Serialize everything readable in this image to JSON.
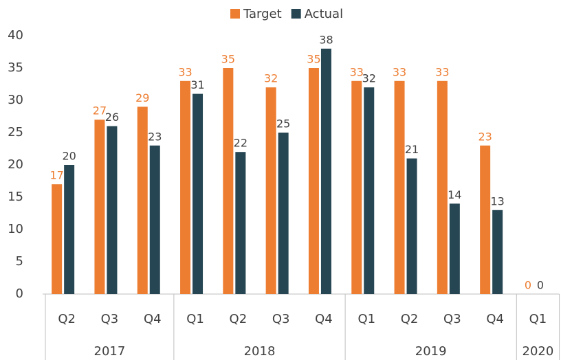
{
  "chart_data": {
    "type": "bar",
    "groups": [
      {
        "name": "2017",
        "quarters": [
          "Q2",
          "Q3",
          "Q4"
        ]
      },
      {
        "name": "2018",
        "quarters": [
          "Q1",
          "Q2",
          "Q3",
          "Q4"
        ]
      },
      {
        "name": "2019",
        "quarters": [
          "Q1",
          "Q2",
          "Q3",
          "Q4"
        ]
      },
      {
        "name": "2020",
        "quarters": [
          "Q1"
        ]
      }
    ],
    "series": [
      {
        "name": "Target",
        "color": "#ed7d31",
        "values": [
          17,
          27,
          29,
          33,
          35,
          32,
          35,
          33,
          33,
          33,
          23,
          0
        ]
      },
      {
        "name": "Actual",
        "color": "#264653",
        "values": [
          20,
          26,
          23,
          31,
          22,
          25,
          38,
          32,
          21,
          14,
          13,
          0
        ]
      }
    ],
    "ylim": [
      0,
      40
    ],
    "yticks": [
      0,
      5,
      10,
      15,
      20,
      25,
      30,
      35,
      40
    ],
    "grid": false,
    "legend": "top"
  }
}
